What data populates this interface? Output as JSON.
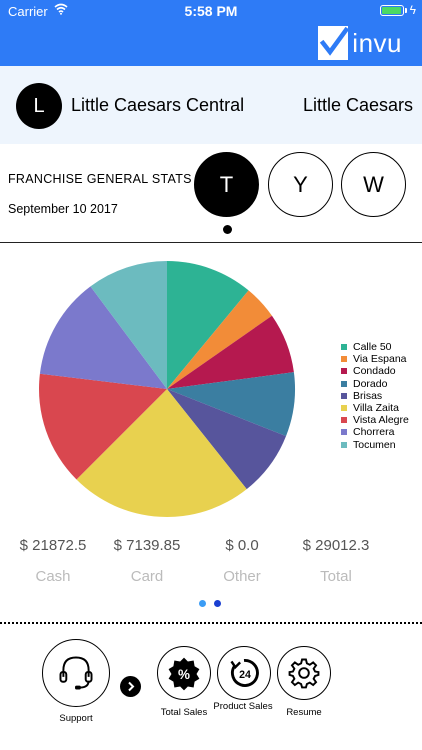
{
  "status_bar": {
    "carrier": "Carrier",
    "time": "5:58 PM"
  },
  "header": {
    "logo_text": "invu",
    "background": "#2e7bf6"
  },
  "store": {
    "avatar_letter": "L",
    "name": "Little Caesars Central",
    "brand": "Little Caesars"
  },
  "stats": {
    "title": "FRANCHISE GENERAL STATS",
    "date": "September 10 2017"
  },
  "periods": [
    {
      "label": "T",
      "active": true
    },
    {
      "label": "Y",
      "active": false
    },
    {
      "label": "W",
      "active": false
    }
  ],
  "chart_data": {
    "type": "pie",
    "title": "",
    "legend_position": "right",
    "slices": [
      {
        "label": "Calle 50",
        "value": 11.0,
        "color": "#2db394"
      },
      {
        "label": "Via Espana",
        "value": 4.3,
        "color": "#f28c38"
      },
      {
        "label": "Condado",
        "value": 7.6,
        "color": "#b5194f"
      },
      {
        "label": "Dorado",
        "value": 8.1,
        "color": "#3b7ea1"
      },
      {
        "label": "Brisas",
        "value": 8.3,
        "color": "#57559c"
      },
      {
        "label": "Villa Zaita",
        "value": 23.2,
        "color": "#e8d14f"
      },
      {
        "label": "Vista Alegre",
        "value": 14.4,
        "color": "#d9474f"
      },
      {
        "label": "Chorrera",
        "value": 12.9,
        "color": "#7b79cc"
      },
      {
        "label": "Tocumen",
        "value": 10.2,
        "color": "#6cbbbf"
      }
    ]
  },
  "totals": [
    {
      "value": "$ 21872.5",
      "label": "Cash"
    },
    {
      "value": "$ 7139.85",
      "label": "Card"
    },
    {
      "value": "$ 0.0",
      "label": "Other"
    },
    {
      "value": "$ 29012.3",
      "label": "Total"
    }
  ],
  "page_indicator": {
    "pages": 2,
    "current": 1,
    "colors": [
      "#3b9cf5",
      "#1a3fd1"
    ]
  },
  "bottom_bar": {
    "support_label": "Support",
    "total_sales_label": "Total Sales",
    "product_sales_label": "Product Sales",
    "product_sales_badge": "24",
    "resume_label": "Resume",
    "total_sales_symbol": "%"
  }
}
